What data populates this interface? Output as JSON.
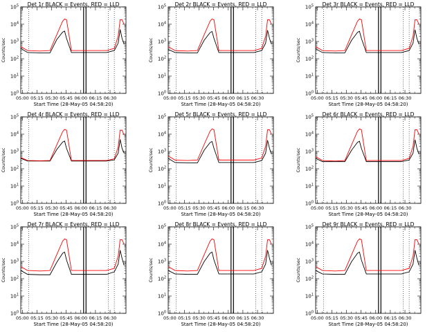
{
  "figure": {
    "xlabel": "Start Time (28-May-05 04:58:20)",
    "ylabel": "Counts/sec",
    "x_tick_labels": [
      "05:00",
      "05:15",
      "05:30",
      "05:45",
      "06:00",
      "06:15",
      "06:30"
    ],
    "y_tick_labels": [
      {
        "base": "10",
        "exp": "0"
      },
      {
        "base": "10",
        "exp": "1"
      },
      {
        "base": "10",
        "exp": "2"
      },
      {
        "base": "10",
        "exp": "3"
      },
      {
        "base": "10",
        "exp": "4"
      },
      {
        "base": "10",
        "exp": "5"
      }
    ]
  },
  "colors": {
    "events": "#000000",
    "lld": "#ff0000",
    "axes": "#000000"
  },
  "chart_data": [
    {
      "type": "line",
      "title": "Det 1r BLACK = Events, RED = LLD",
      "xlabel": "Start Time (28-May-05 04:58:20)",
      "ylabel": "Counts/sec",
      "x_tick_labels": [
        "05:00",
        "05:15",
        "05:30",
        "05:45",
        "06:00",
        "06:15",
        "06:30"
      ],
      "ylim": [
        1,
        100000
      ],
      "y_scale": "log",
      "x_minutes_since_0458": [
        0,
        7,
        20,
        30,
        37,
        43,
        45,
        47,
        52,
        58,
        70,
        76,
        82,
        88,
        96,
        100,
        102,
        104,
        106
      ],
      "series": [
        {
          "name": "Events",
          "values": [
            400,
            230,
            220,
            220,
            1300,
            3500,
            4000,
            1500,
            230,
            230,
            230,
            230,
            230,
            230,
            300,
            800,
            5000,
            1500,
            700
          ]
        },
        {
          "name": "LLD",
          "values": [
            500,
            300,
            280,
            300,
            2500,
            15000,
            20000,
            18000,
            300,
            300,
            300,
            300,
            300,
            300,
            400,
            2000,
            18000,
            18000,
            10000
          ]
        }
      ]
    },
    {
      "type": "line",
      "title": "Det 2r BLACK = Events, RED = LLD",
      "xlabel": "Start Time (28-May-05 04:58:20)",
      "ylabel": "Counts/sec",
      "x_tick_labels": [
        "05:00",
        "05:15",
        "05:30",
        "05:45",
        "06:00",
        "06:15",
        "06:30"
      ],
      "ylim": [
        1,
        100000
      ],
      "y_scale": "log",
      "x_minutes_since_0458": [
        0,
        7,
        20,
        30,
        37,
        43,
        45,
        47,
        52,
        58,
        70,
        76,
        82,
        88,
        96,
        100,
        102,
        104,
        106
      ],
      "series": [
        {
          "name": "Events",
          "values": [
            350,
            230,
            220,
            220,
            1200,
            3300,
            3800,
            1500,
            230,
            230,
            230,
            230,
            230,
            230,
            300,
            800,
            4500,
            1500,
            700
          ]
        },
        {
          "name": "LLD",
          "values": [
            500,
            300,
            280,
            300,
            2500,
            15000,
            20000,
            18000,
            300,
            300,
            300,
            300,
            300,
            300,
            400,
            2000,
            18000,
            18000,
            10000
          ]
        }
      ]
    },
    {
      "type": "line",
      "title": "Det 3r BLACK = Events, RED = LLD",
      "xlabel": "Start Time (28-May-05 04:58:20)",
      "ylabel": "Counts/sec",
      "x_tick_labels": [
        "05:00",
        "05:15",
        "05:30",
        "05:45",
        "06:00",
        "06:15",
        "06:30"
      ],
      "ylim": [
        1,
        100000
      ],
      "y_scale": "log",
      "x_minutes_since_0458": [
        0,
        7,
        20,
        30,
        37,
        43,
        45,
        47,
        52,
        58,
        70,
        76,
        82,
        88,
        96,
        100,
        102,
        104,
        106
      ],
      "series": [
        {
          "name": "Events",
          "values": [
            380,
            230,
            220,
            220,
            1200,
            3400,
            3900,
            1500,
            230,
            230,
            230,
            230,
            230,
            230,
            300,
            800,
            4800,
            1500,
            700
          ]
        },
        {
          "name": "LLD",
          "values": [
            500,
            300,
            280,
            300,
            2500,
            15000,
            20000,
            18000,
            300,
            300,
            300,
            300,
            300,
            300,
            400,
            2000,
            18000,
            18000,
            10000
          ]
        }
      ]
    },
    {
      "type": "line",
      "title": "Det 4r BLACK = Events, RED = LLD",
      "xlabel": "Start Time (28-May-05 04:58:20)",
      "ylabel": "Counts/sec",
      "x_tick_labels": [
        "05:00",
        "05:15",
        "05:30",
        "05:45",
        "06:00",
        "06:15",
        "06:30"
      ],
      "ylim": [
        1,
        100000
      ],
      "y_scale": "log",
      "x_minutes_since_0458": [
        0,
        7,
        20,
        30,
        37,
        43,
        45,
        47,
        52,
        58,
        70,
        76,
        82,
        88,
        96,
        100,
        102,
        104,
        106
      ],
      "series": [
        {
          "name": "Events",
          "values": [
            400,
            280,
            280,
            280,
            1300,
            3500,
            4000,
            1500,
            280,
            280,
            280,
            280,
            280,
            280,
            330,
            800,
            5000,
            1500,
            800
          ]
        },
        {
          "name": "LLD",
          "values": [
            450,
            300,
            290,
            300,
            2400,
            14000,
            19000,
            17000,
            300,
            300,
            300,
            300,
            300,
            300,
            380,
            1800,
            17000,
            17000,
            9000
          ]
        }
      ]
    },
    {
      "type": "line",
      "title": "Det 5r BLACK = Events, RED = LLD",
      "xlabel": "Start Time (28-May-05 04:58:20)",
      "ylabel": "Counts/sec",
      "x_tick_labels": [
        "05:00",
        "05:15",
        "05:30",
        "05:45",
        "06:00",
        "06:15",
        "06:30"
      ],
      "ylim": [
        1,
        100000
      ],
      "y_scale": "log",
      "x_minutes_since_0458": [
        0,
        7,
        20,
        30,
        37,
        43,
        45,
        47,
        52,
        58,
        70,
        76,
        82,
        88,
        96,
        100,
        102,
        104,
        106
      ],
      "series": [
        {
          "name": "Events",
          "values": [
            400,
            230,
            220,
            220,
            1200,
            3300,
            3800,
            1500,
            230,
            230,
            230,
            230,
            230,
            230,
            300,
            800,
            4500,
            1500,
            700
          ]
        },
        {
          "name": "LLD",
          "values": [
            550,
            320,
            300,
            320,
            2600,
            15000,
            20000,
            18000,
            320,
            320,
            320,
            320,
            320,
            320,
            420,
            2000,
            18000,
            18000,
            10000
          ]
        }
      ]
    },
    {
      "type": "line",
      "title": "Det 6r BLACK = Events, RED = LLD",
      "xlabel": "Start Time (28-May-05 04:58:20)",
      "ylabel": "Counts/sec",
      "x_tick_labels": [
        "05:00",
        "05:15",
        "05:30",
        "05:45",
        "06:00",
        "06:15",
        "06:30"
      ],
      "ylim": [
        1,
        100000
      ],
      "y_scale": "log",
      "x_minutes_since_0458": [
        0,
        7,
        20,
        30,
        37,
        43,
        45,
        47,
        52,
        58,
        70,
        76,
        82,
        88,
        96,
        100,
        102,
        104,
        106
      ],
      "series": [
        {
          "name": "Events",
          "values": [
            400,
            260,
            260,
            260,
            1200,
            3400,
            3900,
            1500,
            260,
            260,
            260,
            260,
            260,
            260,
            320,
            800,
            4800,
            1500,
            700
          ]
        },
        {
          "name": "LLD",
          "values": [
            500,
            300,
            280,
            300,
            2500,
            15000,
            20000,
            18000,
            300,
            300,
            300,
            300,
            300,
            300,
            400,
            2000,
            18000,
            18000,
            10000
          ]
        }
      ]
    },
    {
      "type": "line",
      "title": "Det 7r BLACK = Events, RED = LLD",
      "xlabel": "Start Time (28-May-05 04:58:20)",
      "ylabel": "Counts/sec",
      "x_tick_labels": [
        "05:00",
        "05:15",
        "05:30",
        "05:45",
        "06:00",
        "06:15",
        "06:30"
      ],
      "ylim": [
        1,
        100000
      ],
      "y_scale": "log",
      "x_minutes_since_0458": [
        0,
        7,
        20,
        30,
        37,
        43,
        45,
        47,
        52,
        58,
        70,
        76,
        82,
        88,
        96,
        100,
        102,
        104,
        106
      ],
      "series": [
        {
          "name": "Events",
          "values": [
            300,
            180,
            170,
            170,
            900,
            3000,
            3500,
            1200,
            180,
            180,
            180,
            180,
            180,
            180,
            250,
            700,
            4500,
            1500,
            600
          ]
        },
        {
          "name": "LLD",
          "values": [
            500,
            300,
            280,
            300,
            2500,
            15000,
            20000,
            18000,
            300,
            300,
            300,
            300,
            300,
            300,
            400,
            2000,
            18000,
            18000,
            10000
          ]
        }
      ]
    },
    {
      "type": "line",
      "title": "Det 8r BLACK = Events, RED = LLD",
      "xlabel": "Start Time (28-May-05 04:58:20)",
      "ylabel": "Counts/sec",
      "x_tick_labels": [
        "05:00",
        "05:15",
        "05:30",
        "05:45",
        "06:00",
        "06:15",
        "06:30"
      ],
      "ylim": [
        1,
        100000
      ],
      "y_scale": "log",
      "x_minutes_since_0458": [
        0,
        7,
        20,
        30,
        37,
        43,
        45,
        47,
        52,
        58,
        70,
        76,
        82,
        88,
        96,
        100,
        102,
        104,
        106
      ],
      "series": [
        {
          "name": "Events",
          "values": [
            300,
            190,
            180,
            180,
            1000,
            3000,
            3500,
            1200,
            190,
            190,
            190,
            190,
            190,
            190,
            250,
            700,
            4500,
            1500,
            600
          ]
        },
        {
          "name": "LLD",
          "values": [
            500,
            300,
            280,
            300,
            2500,
            15000,
            20000,
            18000,
            300,
            300,
            300,
            300,
            300,
            300,
            400,
            2000,
            18000,
            18000,
            10000
          ]
        }
      ]
    },
    {
      "type": "line",
      "title": "Det 9r BLACK = Events, RED = LLD",
      "xlabel": "Start Time (28-May-05 04:58:20)",
      "ylabel": "Counts/sec",
      "x_tick_labels": [
        "05:00",
        "05:15",
        "05:30",
        "05:45",
        "06:00",
        "06:15",
        "06:30"
      ],
      "ylim": [
        1,
        100000
      ],
      "y_scale": "log",
      "x_minutes_since_0458": [
        0,
        7,
        20,
        30,
        37,
        43,
        45,
        47,
        52,
        58,
        70,
        76,
        82,
        88,
        96,
        100,
        102,
        104,
        106
      ],
      "series": [
        {
          "name": "Events",
          "values": [
            300,
            190,
            180,
            180,
            1000,
            3000,
            3500,
            1200,
            190,
            190,
            190,
            190,
            190,
            190,
            250,
            700,
            4500,
            1500,
            600
          ]
        },
        {
          "name": "LLD",
          "values": [
            500,
            300,
            280,
            300,
            2500,
            15000,
            20000,
            18000,
            300,
            300,
            300,
            300,
            300,
            300,
            400,
            2000,
            18000,
            18000,
            10000
          ]
        }
      ]
    }
  ]
}
